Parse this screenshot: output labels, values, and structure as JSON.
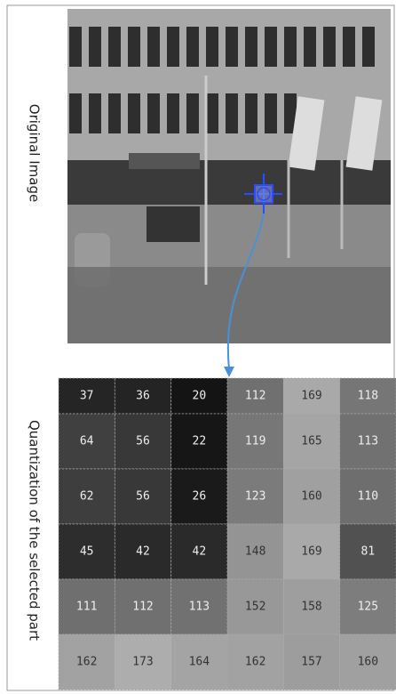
{
  "labels": {
    "original": "Original Image",
    "quantized": "Quantization of the selected part"
  },
  "grid": {
    "rows": [
      [
        37,
        36,
        20,
        112,
        169,
        118
      ],
      [
        64,
        56,
        22,
        119,
        165,
        113
      ],
      [
        62,
        56,
        26,
        123,
        160,
        110
      ],
      [
        45,
        42,
        42,
        148,
        169,
        81
      ],
      [
        111,
        112,
        113,
        152,
        158,
        125
      ],
      [
        162,
        173,
        164,
        162,
        157,
        160
      ]
    ]
  }
}
